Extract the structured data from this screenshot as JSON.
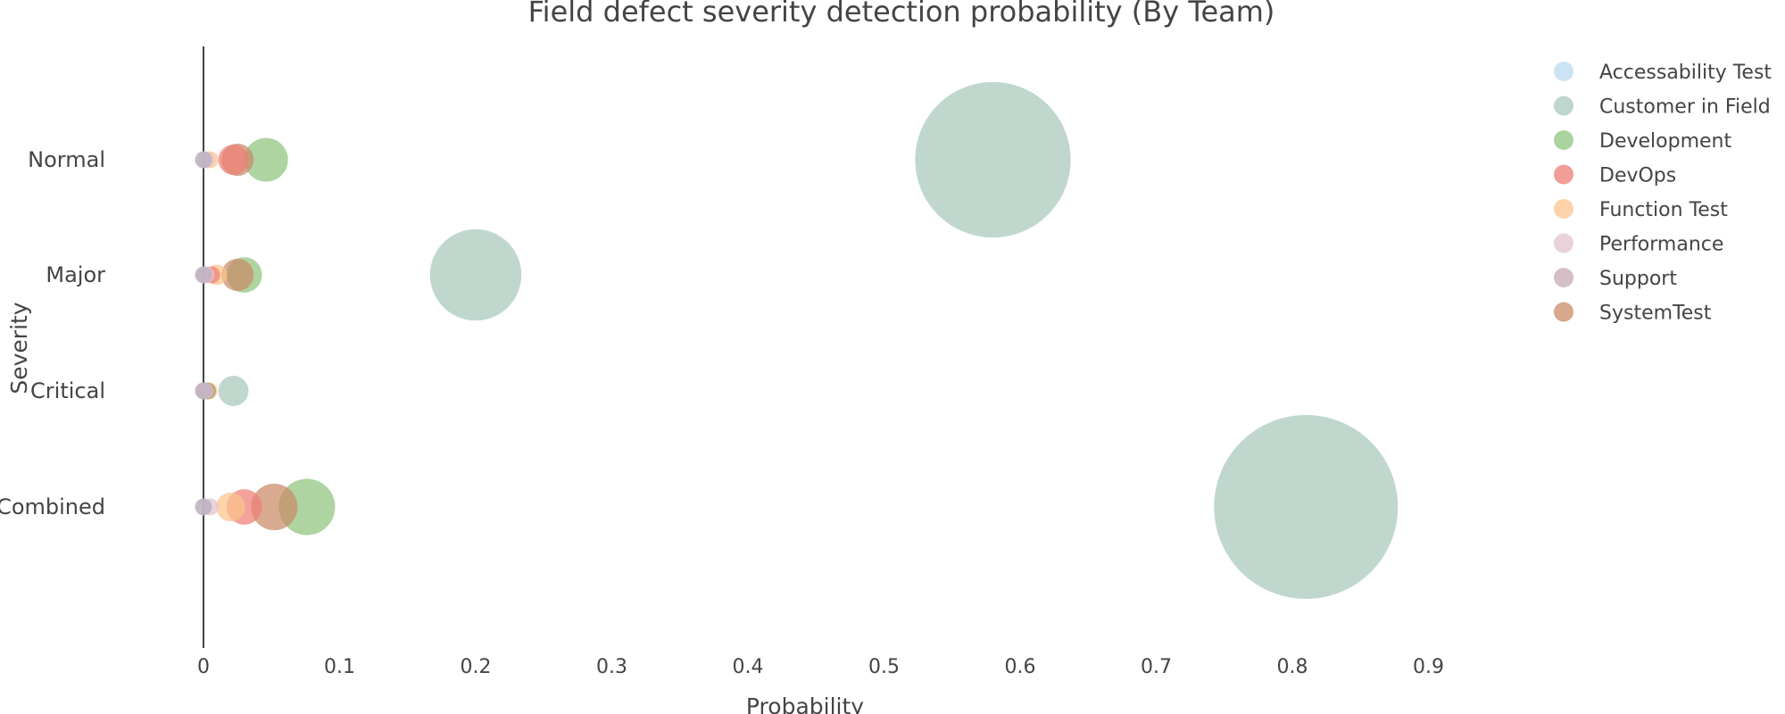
{
  "chart_data": {
    "type": "scatter",
    "title": "Field defect severity detection probability (By Team)",
    "xlabel": "Probability",
    "ylabel": "Severity",
    "xlim": [
      -0.15,
      0.93
    ],
    "x_ticks": [
      0,
      0.1,
      0.2,
      0.3,
      0.4,
      0.5,
      0.6,
      0.7,
      0.8,
      0.9
    ],
    "x_tick_labels": [
      "0",
      "0.1",
      "0.2",
      "0.3",
      "0.4",
      "0.5",
      "0.6",
      "0.7",
      "0.8",
      "0.9"
    ],
    "categories": [
      "Normal",
      "Major",
      "Critical",
      "Combined"
    ],
    "grid": false,
    "legend_position": "top-right",
    "marker_size_encodes": "probability",
    "series": [
      {
        "name": "Accessability Test",
        "color": "#b9d9ee",
        "values": [
          0.0,
          0.0,
          0.0,
          0.0
        ]
      },
      {
        "name": "Customer in Field",
        "color": "#a8c8bb",
        "values": [
          0.58,
          0.2,
          0.022,
          0.81
        ]
      },
      {
        "name": "Development",
        "color": "#8fc47d",
        "values": [
          0.046,
          0.03,
          0.002,
          0.076
        ]
      },
      {
        "name": "DevOps",
        "color": "#ee7e76",
        "values": [
          0.022,
          0.006,
          0.001,
          0.03
        ]
      },
      {
        "name": "Function Test",
        "color": "#fcc48c",
        "values": [
          0.005,
          0.01,
          0.004,
          0.02
        ]
      },
      {
        "name": "Performance",
        "color": "#e2c3cf",
        "values": [
          0.002,
          0.002,
          0.001,
          0.005
        ]
      },
      {
        "name": "Support",
        "color": "#c5a9b7",
        "values": [
          0.0,
          0.0,
          0.0,
          0.0
        ]
      },
      {
        "name": "SystemTest",
        "color": "#c98b66",
        "values": [
          0.025,
          0.025,
          0.003,
          0.052
        ]
      }
    ]
  }
}
